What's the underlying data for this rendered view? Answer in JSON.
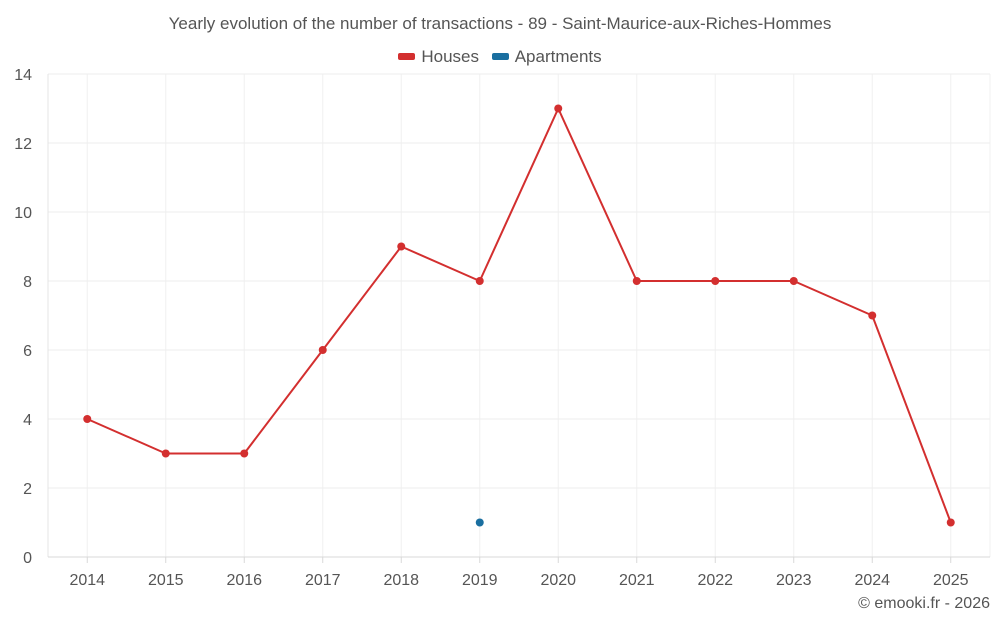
{
  "chart_data": {
    "type": "line",
    "title": "Yearly evolution of the number of transactions - 89 - Saint-Maurice-aux-Riches-Hommes",
    "categories": [
      "2014",
      "2015",
      "2016",
      "2017",
      "2018",
      "2019",
      "2020",
      "2021",
      "2022",
      "2023",
      "2024",
      "2025"
    ],
    "series": [
      {
        "name": "Houses",
        "color": "#d32f2f",
        "values": [
          4,
          3,
          3,
          6,
          9,
          8,
          13,
          8,
          8,
          8,
          7,
          1
        ]
      },
      {
        "name": "Apartments",
        "color": "#1a6fa0",
        "values": [
          null,
          null,
          null,
          null,
          null,
          1,
          null,
          null,
          null,
          null,
          null,
          null
        ]
      }
    ],
    "ylim": [
      0,
      14
    ],
    "yticks": [
      0,
      2,
      4,
      6,
      8,
      10,
      12,
      14
    ],
    "xlabel": "",
    "ylabel": "",
    "grid": true,
    "legend": "top-center"
  },
  "credit": "© emooki.fr - 2026"
}
